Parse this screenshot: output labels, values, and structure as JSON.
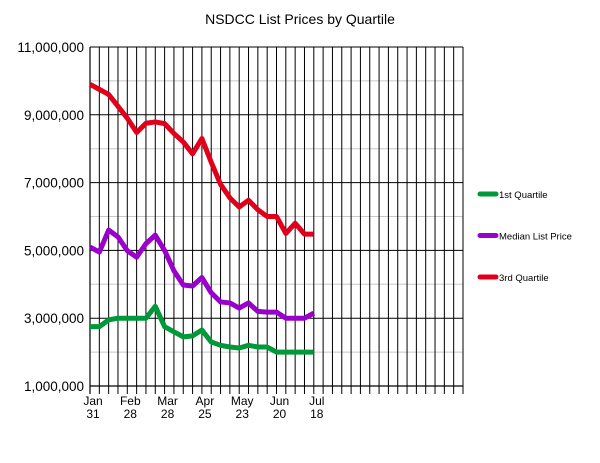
{
  "chart_data": {
    "type": "line",
    "title": "NSDCC List Prices by Quartile",
    "xlabel": "",
    "ylabel": "",
    "ylim": [
      1000000,
      11000000
    ],
    "yticks": [
      1000000,
      3000000,
      5000000,
      7000000,
      9000000,
      11000000
    ],
    "ytick_labels": [
      "1,000,000",
      "3,000,000",
      "5,000,000",
      "7,000,000",
      "9,000,000",
      "11,000,000"
    ],
    "x_tick_labels": [
      {
        "index": 0,
        "month": "Jan",
        "day": "31"
      },
      {
        "index": 4,
        "month": "Feb",
        "day": "28"
      },
      {
        "index": 8,
        "month": "Mar",
        "day": "28"
      },
      {
        "index": 12,
        "month": "Apr",
        "day": "25"
      },
      {
        "index": 16,
        "month": "May",
        "day": "23"
      },
      {
        "index": 20,
        "month": "Jun",
        "day": "20"
      },
      {
        "index": 24,
        "month": "Jul",
        "day": "18"
      }
    ],
    "x_slots": 40,
    "grid": true,
    "legend_position": "right",
    "series": [
      {
        "name": "1st Quartile",
        "color": "#00993a",
        "values": [
          2750000,
          2750000,
          2950000,
          3000000,
          3000000,
          3000000,
          3000000,
          3350000,
          2750000,
          2600000,
          2450000,
          2480000,
          2650000,
          2300000,
          2200000,
          2150000,
          2120000,
          2200000,
          2150000,
          2150000,
          2000000,
          2000000,
          2000000,
          2000000,
          2000000
        ]
      },
      {
        "name": "Median List Price",
        "color": "#9900cc",
        "values": [
          5100000,
          4950000,
          5600000,
          5400000,
          4990000,
          4800000,
          5200000,
          5450000,
          5000000,
          4400000,
          3980000,
          3950000,
          4200000,
          3750000,
          3480000,
          3450000,
          3300000,
          3450000,
          3200000,
          3180000,
          3180000,
          3000000,
          3000000,
          3000000,
          3150000
        ]
      },
      {
        "name": "3rd Quartile",
        "color": "#e0001b",
        "values": [
          9900000,
          9750000,
          9600000,
          9250000,
          8900000,
          8480000,
          8750000,
          8790000,
          8740000,
          8450000,
          8200000,
          7850000,
          8300000,
          7600000,
          6950000,
          6550000,
          6280000,
          6480000,
          6200000,
          6000000,
          6000000,
          5500000,
          5800000,
          5480000,
          5480000
        ]
      }
    ]
  }
}
